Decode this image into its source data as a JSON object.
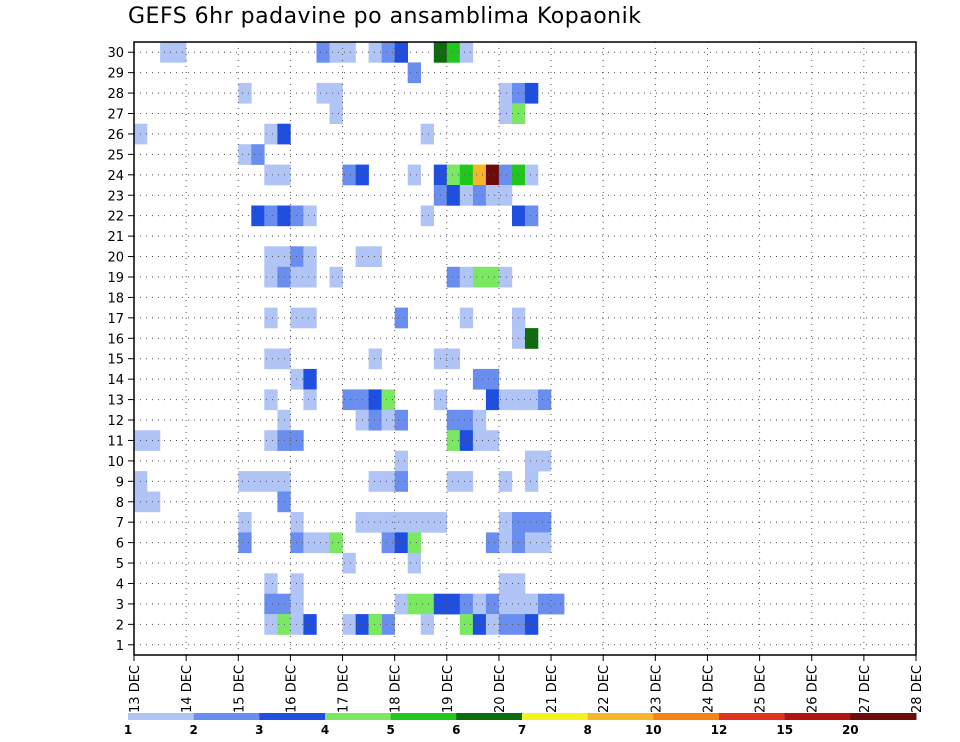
{
  "chart_data": {
    "type": "heatmap",
    "title": "GEFS 6hr padavine po ansamblima Kopaonik",
    "xlabel": "",
    "ylabel": "",
    "x_ticks": [
      "13 DEC",
      "14 DEC",
      "15 DEC",
      "16 DEC",
      "17 DEC",
      "18 DEC",
      "19 DEC",
      "20 DEC",
      "21 DEC",
      "22 DEC",
      "23 DEC",
      "24 DEC",
      "25 DEC",
      "26 DEC",
      "27 DEC",
      "28 DEC"
    ],
    "y_ticks": [
      1,
      2,
      3,
      4,
      5,
      6,
      7,
      8,
      9,
      10,
      11,
      12,
      13,
      14,
      15,
      16,
      17,
      18,
      19,
      20,
      21,
      22,
      23,
      24,
      25,
      26,
      27,
      28,
      29,
      30
    ],
    "xlim": [
      0,
      60
    ],
    "ylim": [
      0.5,
      30.5
    ],
    "grid": true,
    "time_step_hours": 6,
    "legend": {
      "position": "bottom",
      "labels": [
        "1",
        "2",
        "3",
        "4",
        "5",
        "6",
        "7",
        "8",
        "10",
        "12",
        "15",
        "20"
      ],
      "colors": [
        "#b0c4f5",
        "#6a8ef0",
        "#1f4fe0",
        "#7ae860",
        "#22c71e",
        "#0e6b0e",
        "#f3f320",
        "#f7b52a",
        "#f6820f",
        "#e0321d",
        "#b21414",
        "#6e0a0a"
      ]
    },
    "cells": [
      [
        2,
        30,
        1
      ],
      [
        3,
        30,
        1
      ],
      [
        14,
        30,
        2
      ],
      [
        15,
        30,
        1
      ],
      [
        16,
        30,
        1
      ],
      [
        18,
        30,
        1
      ],
      [
        19,
        30,
        2
      ],
      [
        20,
        30,
        3
      ],
      [
        23,
        30,
        6
      ],
      [
        24,
        30,
        5
      ],
      [
        25,
        30,
        1
      ],
      [
        21,
        29,
        2
      ],
      [
        8,
        28,
        1
      ],
      [
        14,
        28,
        1
      ],
      [
        15,
        28,
        1
      ],
      [
        28,
        28,
        1
      ],
      [
        29,
        28,
        2
      ],
      [
        30,
        28,
        3
      ],
      [
        15,
        27,
        1
      ],
      [
        28,
        27,
        1
      ],
      [
        29,
        27,
        4
      ],
      [
        0,
        26,
        1
      ],
      [
        10,
        26,
        1
      ],
      [
        11,
        26,
        3
      ],
      [
        22,
        26,
        1
      ],
      [
        8,
        25,
        1
      ],
      [
        9,
        25,
        2
      ],
      [
        10,
        24,
        1
      ],
      [
        11,
        24,
        1
      ],
      [
        16,
        24,
        2
      ],
      [
        17,
        24,
        3
      ],
      [
        21,
        24,
        1
      ],
      [
        23,
        24,
        3
      ],
      [
        24,
        24,
        4
      ],
      [
        25,
        24,
        5
      ],
      [
        26,
        24,
        8
      ],
      [
        27,
        24,
        12
      ],
      [
        28,
        24,
        2
      ],
      [
        29,
        24,
        5
      ],
      [
        30,
        24,
        1
      ],
      [
        23,
        23,
        2
      ],
      [
        24,
        23,
        3
      ],
      [
        25,
        23,
        1
      ],
      [
        26,
        23,
        2
      ],
      [
        27,
        23,
        1
      ],
      [
        28,
        23,
        1
      ],
      [
        9,
        22,
        3
      ],
      [
        10,
        22,
        2
      ],
      [
        11,
        22,
        3
      ],
      [
        12,
        22,
        2
      ],
      [
        13,
        22,
        1
      ],
      [
        22,
        22,
        1
      ],
      [
        29,
        22,
        3
      ],
      [
        30,
        22,
        2
      ],
      [
        10,
        20,
        1
      ],
      [
        11,
        20,
        1
      ],
      [
        12,
        20,
        2
      ],
      [
        13,
        20,
        1
      ],
      [
        17,
        20,
        1
      ],
      [
        18,
        20,
        1
      ],
      [
        10,
        19,
        1
      ],
      [
        11,
        19,
        2
      ],
      [
        12,
        19,
        1
      ],
      [
        13,
        19,
        1
      ],
      [
        15,
        19,
        1
      ],
      [
        24,
        19,
        2
      ],
      [
        25,
        19,
        1
      ],
      [
        26,
        19,
        4
      ],
      [
        27,
        19,
        4
      ],
      [
        28,
        19,
        1
      ],
      [
        10,
        17,
        1
      ],
      [
        12,
        17,
        1
      ],
      [
        13,
        17,
        1
      ],
      [
        20,
        17,
        2
      ],
      [
        25,
        17,
        1
      ],
      [
        29,
        17,
        1
      ],
      [
        29,
        16,
        1
      ],
      [
        30,
        16,
        6
      ],
      [
        10,
        15,
        1
      ],
      [
        11,
        15,
        1
      ],
      [
        18,
        15,
        1
      ],
      [
        23,
        15,
        1
      ],
      [
        24,
        15,
        1
      ],
      [
        12,
        14,
        1
      ],
      [
        13,
        14,
        3
      ],
      [
        26,
        14,
        2
      ],
      [
        27,
        14,
        2
      ],
      [
        10,
        13,
        1
      ],
      [
        13,
        13,
        1
      ],
      [
        16,
        13,
        2
      ],
      [
        17,
        13,
        2
      ],
      [
        18,
        13,
        3
      ],
      [
        19,
        13,
        4
      ],
      [
        23,
        13,
        1
      ],
      [
        27,
        13,
        3
      ],
      [
        28,
        13,
        1
      ],
      [
        29,
        13,
        1
      ],
      [
        30,
        13,
        1
      ],
      [
        31,
        13,
        2
      ],
      [
        11,
        12,
        1
      ],
      [
        17,
        12,
        1
      ],
      [
        18,
        12,
        2
      ],
      [
        19,
        12,
        1
      ],
      [
        20,
        12,
        2
      ],
      [
        24,
        12,
        2
      ],
      [
        25,
        12,
        2
      ],
      [
        26,
        12,
        1
      ],
      [
        0,
        11,
        1
      ],
      [
        1,
        11,
        1
      ],
      [
        10,
        11,
        1
      ],
      [
        11,
        11,
        2
      ],
      [
        12,
        11,
        2
      ],
      [
        24,
        11,
        4
      ],
      [
        25,
        11,
        3
      ],
      [
        26,
        11,
        1
      ],
      [
        27,
        11,
        1
      ],
      [
        20,
        10,
        1
      ],
      [
        30,
        10,
        1
      ],
      [
        31,
        10,
        1
      ],
      [
        0,
        9,
        1
      ],
      [
        8,
        9,
        1
      ],
      [
        9,
        9,
        1
      ],
      [
        10,
        9,
        1
      ],
      [
        11,
        9,
        1
      ],
      [
        18,
        9,
        1
      ],
      [
        19,
        9,
        1
      ],
      [
        20,
        9,
        2
      ],
      [
        24,
        9,
        1
      ],
      [
        25,
        9,
        1
      ],
      [
        28,
        9,
        1
      ],
      [
        30,
        9,
        1
      ],
      [
        0,
        8,
        1
      ],
      [
        1,
        8,
        1
      ],
      [
        11,
        8,
        2
      ],
      [
        8,
        7,
        1
      ],
      [
        12,
        7,
        1
      ],
      [
        17,
        7,
        1
      ],
      [
        18,
        7,
        1
      ],
      [
        19,
        7,
        1
      ],
      [
        20,
        7,
        1
      ],
      [
        21,
        7,
        1
      ],
      [
        22,
        7,
        1
      ],
      [
        23,
        7,
        1
      ],
      [
        28,
        7,
        1
      ],
      [
        29,
        7,
        2
      ],
      [
        30,
        7,
        2
      ],
      [
        31,
        7,
        2
      ],
      [
        8,
        6,
        2
      ],
      [
        12,
        6,
        2
      ],
      [
        13,
        6,
        1
      ],
      [
        14,
        6,
        1
      ],
      [
        15,
        6,
        4
      ],
      [
        19,
        6,
        2
      ],
      [
        20,
        6,
        3
      ],
      [
        21,
        6,
        4
      ],
      [
        27,
        6,
        2
      ],
      [
        28,
        6,
        1
      ],
      [
        29,
        6,
        2
      ],
      [
        30,
        6,
        1
      ],
      [
        31,
        6,
        1
      ],
      [
        16,
        5,
        1
      ],
      [
        21,
        5,
        1
      ],
      [
        10,
        4,
        1
      ],
      [
        12,
        4,
        1
      ],
      [
        28,
        4,
        1
      ],
      [
        29,
        4,
        1
      ],
      [
        10,
        3,
        2
      ],
      [
        11,
        3,
        2
      ],
      [
        12,
        3,
        1
      ],
      [
        20,
        3,
        1
      ],
      [
        21,
        3,
        4
      ],
      [
        22,
        3,
        4
      ],
      [
        23,
        3,
        3
      ],
      [
        24,
        3,
        3
      ],
      [
        25,
        3,
        2
      ],
      [
        26,
        3,
        1
      ],
      [
        27,
        3,
        2
      ],
      [
        28,
        3,
        1
      ],
      [
        29,
        3,
        1
      ],
      [
        30,
        3,
        1
      ],
      [
        31,
        3,
        2
      ],
      [
        32,
        3,
        2
      ],
      [
        10,
        2,
        1
      ],
      [
        11,
        2,
        4
      ],
      [
        12,
        2,
        1
      ],
      [
        13,
        2,
        3
      ],
      [
        16,
        2,
        1
      ],
      [
        17,
        2,
        3
      ],
      [
        18,
        2,
        4
      ],
      [
        19,
        2,
        2
      ],
      [
        18,
        2,
        4
      ],
      [
        22,
        2,
        1
      ],
      [
        25,
        2,
        4
      ],
      [
        26,
        2,
        3
      ],
      [
        27,
        2,
        1
      ],
      [
        28,
        2,
        2
      ],
      [
        29,
        2,
        2
      ],
      [
        30,
        2,
        3
      ]
    ]
  }
}
